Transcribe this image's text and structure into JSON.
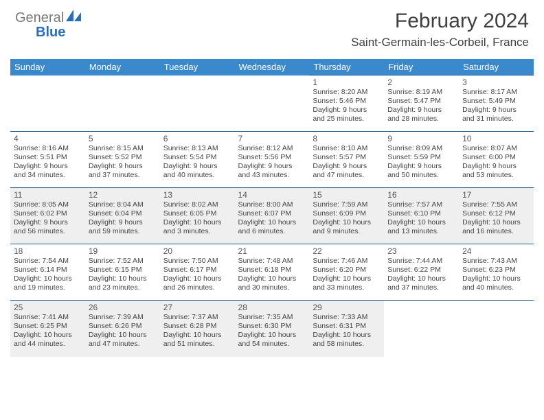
{
  "brand": {
    "gray": "General",
    "blue": "Blue"
  },
  "title": "February 2024",
  "location": "Saint-Germain-les-Corbeil, France",
  "colors": {
    "header_bg": "#3a89cc",
    "header_text": "#ffffff",
    "border": "#1f5a8c",
    "shaded": "#efefef",
    "text": "#444444",
    "logo_blue": "#2a6db8"
  },
  "weekdays": [
    "Sunday",
    "Monday",
    "Tuesday",
    "Wednesday",
    "Thursday",
    "Friday",
    "Saturday"
  ],
  "weeks": [
    [
      null,
      null,
      null,
      null,
      {
        "d": "1",
        "sr": "8:20 AM",
        "ss": "5:46 PM",
        "dl": "9 hours and 25 minutes."
      },
      {
        "d": "2",
        "sr": "8:19 AM",
        "ss": "5:47 PM",
        "dl": "9 hours and 28 minutes."
      },
      {
        "d": "3",
        "sr": "8:17 AM",
        "ss": "5:49 PM",
        "dl": "9 hours and 31 minutes."
      }
    ],
    [
      {
        "d": "4",
        "sr": "8:16 AM",
        "ss": "5:51 PM",
        "dl": "9 hours and 34 minutes."
      },
      {
        "d": "5",
        "sr": "8:15 AM",
        "ss": "5:52 PM",
        "dl": "9 hours and 37 minutes."
      },
      {
        "d": "6",
        "sr": "8:13 AM",
        "ss": "5:54 PM",
        "dl": "9 hours and 40 minutes."
      },
      {
        "d": "7",
        "sr": "8:12 AM",
        "ss": "5:56 PM",
        "dl": "9 hours and 43 minutes."
      },
      {
        "d": "8",
        "sr": "8:10 AM",
        "ss": "5:57 PM",
        "dl": "9 hours and 47 minutes."
      },
      {
        "d": "9",
        "sr": "8:09 AM",
        "ss": "5:59 PM",
        "dl": "9 hours and 50 minutes."
      },
      {
        "d": "10",
        "sr": "8:07 AM",
        "ss": "6:00 PM",
        "dl": "9 hours and 53 minutes."
      }
    ],
    [
      {
        "d": "11",
        "sr": "8:05 AM",
        "ss": "6:02 PM",
        "dl": "9 hours and 56 minutes."
      },
      {
        "d": "12",
        "sr": "8:04 AM",
        "ss": "6:04 PM",
        "dl": "9 hours and 59 minutes."
      },
      {
        "d": "13",
        "sr": "8:02 AM",
        "ss": "6:05 PM",
        "dl": "10 hours and 3 minutes."
      },
      {
        "d": "14",
        "sr": "8:00 AM",
        "ss": "6:07 PM",
        "dl": "10 hours and 6 minutes."
      },
      {
        "d": "15",
        "sr": "7:59 AM",
        "ss": "6:09 PM",
        "dl": "10 hours and 9 minutes."
      },
      {
        "d": "16",
        "sr": "7:57 AM",
        "ss": "6:10 PM",
        "dl": "10 hours and 13 minutes."
      },
      {
        "d": "17",
        "sr": "7:55 AM",
        "ss": "6:12 PM",
        "dl": "10 hours and 16 minutes."
      }
    ],
    [
      {
        "d": "18",
        "sr": "7:54 AM",
        "ss": "6:14 PM",
        "dl": "10 hours and 19 minutes."
      },
      {
        "d": "19",
        "sr": "7:52 AM",
        "ss": "6:15 PM",
        "dl": "10 hours and 23 minutes."
      },
      {
        "d": "20",
        "sr": "7:50 AM",
        "ss": "6:17 PM",
        "dl": "10 hours and 26 minutes."
      },
      {
        "d": "21",
        "sr": "7:48 AM",
        "ss": "6:18 PM",
        "dl": "10 hours and 30 minutes."
      },
      {
        "d": "22",
        "sr": "7:46 AM",
        "ss": "6:20 PM",
        "dl": "10 hours and 33 minutes."
      },
      {
        "d": "23",
        "sr": "7:44 AM",
        "ss": "6:22 PM",
        "dl": "10 hours and 37 minutes."
      },
      {
        "d": "24",
        "sr": "7:43 AM",
        "ss": "6:23 PM",
        "dl": "10 hours and 40 minutes."
      }
    ],
    [
      {
        "d": "25",
        "sr": "7:41 AM",
        "ss": "6:25 PM",
        "dl": "10 hours and 44 minutes."
      },
      {
        "d": "26",
        "sr": "7:39 AM",
        "ss": "6:26 PM",
        "dl": "10 hours and 47 minutes."
      },
      {
        "d": "27",
        "sr": "7:37 AM",
        "ss": "6:28 PM",
        "dl": "10 hours and 51 minutes."
      },
      {
        "d": "28",
        "sr": "7:35 AM",
        "ss": "6:30 PM",
        "dl": "10 hours and 54 minutes."
      },
      {
        "d": "29",
        "sr": "7:33 AM",
        "ss": "6:31 PM",
        "dl": "10 hours and 58 minutes."
      },
      null,
      null
    ]
  ],
  "labels": {
    "sunrise": "Sunrise:",
    "sunset": "Sunset:",
    "daylight": "Daylight:"
  }
}
